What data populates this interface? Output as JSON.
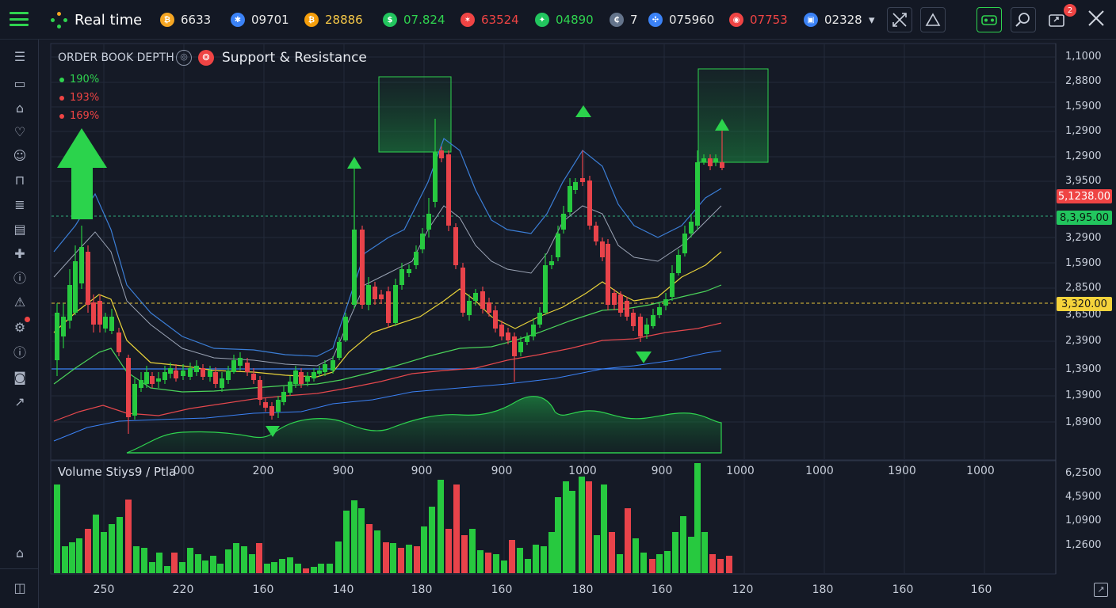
{
  "app": {
    "title": "Real time"
  },
  "tickers": [
    {
      "value": "6633",
      "color": "#e8e8e8",
      "icon_color": "#f5a623",
      "icon": "coin-icon",
      "glyph": "₿"
    },
    {
      "value": "09701",
      "color": "#e8e8e8",
      "icon_color": "#3b82f6",
      "icon": "asterisk-icon",
      "glyph": "✱"
    },
    {
      "value": "28886",
      "color": "#f7c948",
      "icon_color": "#f59e0b",
      "icon": "bitcoin-icon",
      "glyph": "₿"
    },
    {
      "value": "07.824",
      "color": "#2fd34f",
      "icon_color": "#22c55e",
      "icon": "dollar-icon",
      "glyph": "$"
    },
    {
      "value": "63524",
      "color": "#ef4444",
      "icon_color": "#ef4444",
      "icon": "fox-icon",
      "glyph": "✶"
    },
    {
      "value": "04890",
      "color": "#2fd34f",
      "icon_color": "#22c55e",
      "icon": "star-icon",
      "glyph": "✦"
    },
    {
      "value": "7",
      "color": "#e8e8e8",
      "icon_color": "#64748b",
      "icon": "currency-icon",
      "glyph": "₵"
    },
    {
      "value": "075960",
      "color": "#e8e8e8",
      "icon_color": "#3b82f6",
      "icon": "ripple-icon",
      "glyph": "✣"
    },
    {
      "value": "07753",
      "color": "#ef4444",
      "icon_color": "#ef4444",
      "icon": "token-icon",
      "glyph": "◉"
    },
    {
      "value": "02328",
      "color": "#e8e8e8",
      "icon_color": "#3b82f6",
      "icon": "wallet-icon",
      "glyph": "▣"
    }
  ],
  "header_icons": [
    "dropdown-icon",
    "fullscreen-icon",
    "alert-triangle-icon",
    "layout-icon",
    "search-icon",
    "screenshot-icon",
    "close-icon"
  ],
  "notification_badge": "2",
  "sidebar_icons": [
    "list-icon",
    "trash-icon",
    "home-icon",
    "heart-icon",
    "chat-icon",
    "bag-icon",
    "document-icon",
    "briefcase-icon",
    "puzzle-icon",
    "info-icon",
    "alert-icon",
    "settings-icon",
    "warning-icon",
    "camera-icon",
    "edit-icon",
    "house-icon",
    "gamepad-icon"
  ],
  "chart_header": {
    "left": "ORDER BOOK DEPTH",
    "right": "Support & Resistance"
  },
  "legend": [
    {
      "text": "190%",
      "color": "#2fd34f"
    },
    {
      "text": "193%",
      "color": "#ef4444"
    },
    {
      "text": "169%",
      "color": "#ef4444"
    }
  ],
  "price_axis": [
    "1,1000",
    "2,8800",
    "1,5900",
    "1,2900",
    "1,2900",
    "3,9500",
    "3,2900",
    "1,5900",
    "2,8500",
    "3,6500",
    "2,3900",
    "1,3900",
    "1,3900",
    "1,8900"
  ],
  "price_tags": [
    {
      "text": "5,1238.00",
      "bg": "#ef4444",
      "fg": "#ffffff"
    },
    {
      "text": "8,3,95.00",
      "bg": "#22c55e",
      "fg": "#0b1a10"
    },
    {
      "text": "3,320.00",
      "bg": "#f5d33b",
      "fg": "#1a1a1a"
    }
  ],
  "volume_header": "Volume Stiys9 / Ptla",
  "volume_axis": [
    "6,2500",
    "4,5900",
    "1,0900",
    "1,2600"
  ],
  "middle_axis": [
    "000",
    "200",
    "900",
    "900",
    "900",
    "1000",
    "900",
    "1000",
    "1000",
    "1900",
    "1000"
  ],
  "bottom_axis": [
    "250",
    "220",
    "160",
    "140",
    "180",
    "160",
    "180",
    "160",
    "120",
    "180",
    "160",
    "160"
  ],
  "colors": {
    "up": "#27c93f",
    "down": "#e8434a",
    "bg": "#151a26",
    "grid": "#222a3a"
  }
}
